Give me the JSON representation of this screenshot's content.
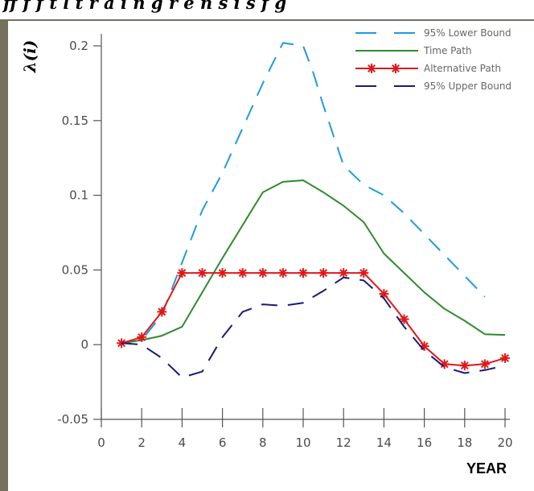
{
  "header": {
    "text": "ff f f t l t r a i n g r e n s i s f g"
  },
  "chart_data": {
    "type": "line",
    "title": "",
    "xlabel": "YEAR",
    "ylabel": "λ(i)",
    "xlim": [
      0,
      20
    ],
    "ylim": [
      -0.05,
      0.2
    ],
    "x_ticks": [
      "0",
      "2",
      "4",
      "6",
      "8",
      "10",
      "12",
      "14",
      "16",
      "18",
      "20"
    ],
    "y_ticks": [
      "-0.05",
      "0",
      "0.05",
      "0.1",
      "0.15",
      "0.2"
    ],
    "legend_position": "top-right",
    "series": [
      {
        "name": "95% Lower Bound",
        "color": "#1e9be0",
        "style": "dashed",
        "x": [
          1,
          2,
          3,
          4,
          5,
          6,
          7,
          8,
          9,
          10,
          10.5,
          11,
          12,
          13,
          14,
          15,
          16,
          17,
          18,
          19
        ],
        "y": [
          0.001,
          0.003,
          0.02,
          0.055,
          0.09,
          0.115,
          0.145,
          0.175,
          0.202,
          0.2,
          0.182,
          0.16,
          0.12,
          0.107,
          0.1,
          0.088,
          0.074,
          0.06,
          0.046,
          0.032
        ]
      },
      {
        "name": "Time Path",
        "color": "#2e8b2e",
        "style": "solid",
        "x": [
          1,
          2,
          3,
          4,
          5,
          6,
          7,
          8,
          9,
          10,
          11,
          12,
          13,
          14,
          15,
          16,
          17,
          18,
          19,
          20
        ],
        "y": [
          0.001,
          0.003,
          0.006,
          0.012,
          0.035,
          0.058,
          0.08,
          0.102,
          0.109,
          0.11,
          0.102,
          0.093,
          0.082,
          0.061,
          0.048,
          0.035,
          0.024,
          0.016,
          0.007,
          0.0065
        ]
      },
      {
        "name": "Alternative Path",
        "color": "#e01818",
        "style": "solid-star",
        "x": [
          1,
          2,
          3,
          4,
          5,
          6,
          7,
          8,
          9,
          10,
          11,
          12,
          13,
          14,
          15,
          16,
          17,
          18,
          19,
          20
        ],
        "y": [
          0.001,
          0.005,
          0.022,
          0.048,
          0.048,
          0.048,
          0.048,
          0.048,
          0.048,
          0.048,
          0.048,
          0.048,
          0.048,
          0.034,
          0.017,
          -0.001,
          -0.013,
          -0.014,
          -0.013,
          -0.009
        ]
      },
      {
        "name": "95% Upper Bound",
        "color": "#1a1a7a",
        "style": "dashed",
        "x": [
          1,
          2,
          3,
          4,
          5,
          6,
          7,
          8,
          9,
          10,
          11,
          12,
          13,
          14,
          15,
          16,
          17,
          18,
          19,
          20
        ],
        "y": [
          0.001,
          0.0,
          -0.009,
          -0.022,
          -0.018,
          0.005,
          0.022,
          0.027,
          0.026,
          0.028,
          0.036,
          0.045,
          0.043,
          0.031,
          0.012,
          -0.004,
          -0.015,
          -0.019,
          -0.017,
          -0.014
        ]
      }
    ]
  }
}
